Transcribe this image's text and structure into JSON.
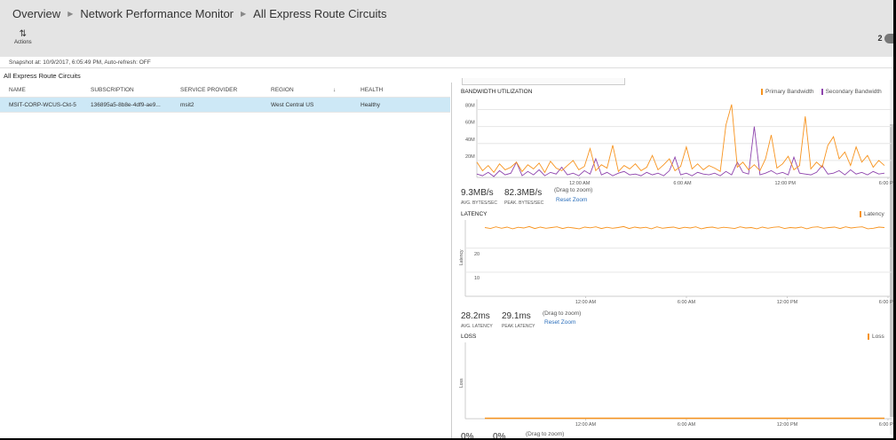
{
  "breadcrumb": [
    "Overview",
    "Network Performance Monitor",
    "All Express Route Circuits"
  ],
  "toolbar": {
    "actions_label": "Actions",
    "actions_icon": "sliders-icon",
    "notification_count": "2",
    "info_icon": "info-icon"
  },
  "snapshot": "Snapshot at: 10/9/2017, 6:05:49 PM, Auto-refresh: OFF",
  "list": {
    "title": "All Express Route Circuits",
    "columns": [
      "NAME",
      "SUBSCRIPTION",
      "SERVICE PROVIDER",
      "REGION",
      "↓",
      "HEALTH"
    ],
    "rows": [
      [
        "MSIT-CORP-WCUS-Ckt-5",
        "136895a5-8b8e-4df9-ae9...",
        "msit2",
        "West Central US",
        "",
        "Healthy"
      ]
    ]
  },
  "colors": {
    "primary": "#f7931e",
    "secondary": "#8e44ad",
    "link": "#2a6ebb",
    "selected_row": "#cde8f6"
  },
  "bandwidth": {
    "title": "BANDWIDTH UTILIZATION",
    "avg": "9.3MB/s",
    "avg_label": "AVG. BYTES/SEC",
    "peak": "82.3MB/s",
    "peak_label": "PEAK. BYTES/SEC",
    "drag": "(Drag to zoom)",
    "reset": "Reset Zoom"
  },
  "latency": {
    "title": "LATENCY",
    "avg": "28.2ms",
    "avg_label": "AVG. LATENCY",
    "peak": "29.1ms",
    "peak_label": "PEAK LATENCY",
    "drag": "(Drag to zoom)",
    "reset": "Reset Zoom"
  },
  "loss": {
    "title": "LOSS",
    "avg": "0%",
    "peak": "0%",
    "drag": "(Drag to zoom)"
  },
  "chart_data": [
    {
      "type": "line",
      "title": "BANDWIDTH UTILIZATION",
      "ylim": [
        0,
        90
      ],
      "yticks": [
        "20M",
        "40M",
        "60M",
        "80M"
      ],
      "ytick_values": [
        20,
        40,
        60,
        80
      ],
      "xticks": [
        "12:00 AM",
        "6:00 AM",
        "12:00 PM",
        "6:00 PM"
      ],
      "xrange": [
        "6:00 PM",
        "6:00 PM"
      ],
      "grid": true,
      "legend": "top-right",
      "series": [
        {
          "name": "Primary Bandwidth",
          "color": "#f7931e",
          "values": [
            18,
            8,
            14,
            6,
            16,
            9,
            12,
            18,
            7,
            15,
            10,
            17,
            6,
            19,
            11,
            8,
            14,
            20,
            9,
            13,
            34,
            8,
            15,
            11,
            38,
            7,
            14,
            10,
            16,
            8,
            12,
            26,
            9,
            15,
            22,
            8,
            13,
            36,
            10,
            16,
            9,
            14,
            11,
            7,
            62,
            86,
            12,
            18,
            9,
            15,
            8,
            22,
            50,
            11,
            16,
            25,
            9,
            14,
            72,
            10,
            18,
            12,
            38,
            48,
            22,
            30,
            14,
            36,
            18,
            26,
            12,
            20,
            14
          ]
        },
        {
          "name": "Secondary Bandwidth",
          "color": "#8e44ad",
          "values": [
            4,
            2,
            6,
            1,
            8,
            3,
            5,
            18,
            2,
            7,
            3,
            9,
            2,
            6,
            4,
            12,
            3,
            5,
            2,
            8,
            4,
            22,
            3,
            6,
            2,
            5,
            7,
            3,
            4,
            2,
            6,
            3,
            5,
            2,
            8,
            24,
            3,
            5,
            2,
            6,
            4,
            3,
            5,
            2,
            7,
            3,
            18,
            6,
            4,
            60,
            3,
            5,
            8,
            4,
            6,
            3,
            24,
            5,
            4,
            3,
            6,
            14,
            4,
            5,
            8,
            3,
            9,
            4,
            6,
            3,
            7,
            4,
            5
          ]
        }
      ]
    },
    {
      "type": "line",
      "title": "LATENCY",
      "ylabel": "Latency",
      "ylim": [
        0,
        31
      ],
      "yticks": [
        "10",
        "20"
      ],
      "ytick_values": [
        10,
        20
      ],
      "xticks": [
        "12:00 AM",
        "6:00 AM",
        "12:00 PM",
        "6:00 PM"
      ],
      "grid": true,
      "legend": "top-right",
      "series": [
        {
          "name": "Latency",
          "color": "#f7931e",
          "values": [
            28.6,
            28.2,
            28.9,
            28.3,
            28.8,
            28.1,
            28.7,
            28.4,
            29.0,
            28.2,
            28.8,
            28.3,
            28.6,
            28.9,
            28.2,
            28.7,
            28.4,
            28.1,
            28.8,
            28.5,
            28.9,
            28.2,
            28.7,
            28.3,
            28.6,
            29.0,
            28.2,
            28.8,
            28.4,
            28.7,
            28.1,
            28.9,
            28.3,
            28.6,
            28.8,
            28.2,
            28.7,
            28.4,
            28.9,
            28.1,
            28.6,
            28.8,
            28.3,
            28.7,
            28.5,
            28.2,
            28.9,
            28.4,
            28.6,
            28.1,
            28.8,
            28.3,
            28.7,
            28.9,
            28.2,
            28.6,
            28.4,
            28.8,
            28.1,
            28.7,
            28.9,
            28.3,
            28.6,
            28.8,
            28.2,
            28.9,
            28.4,
            28.7,
            28.9,
            28.1,
            28.3,
            28.8,
            28.6
          ]
        }
      ]
    },
    {
      "type": "line",
      "title": "LOSS",
      "ylabel": "Loss",
      "xticks": [
        "12:00 AM",
        "6:00 AM",
        "12:00 PM",
        "6:00 PM"
      ],
      "legend": "top-right",
      "series": [
        {
          "name": "Loss",
          "color": "#f7931e",
          "values": [
            0,
            0,
            0,
            0,
            0,
            0,
            0,
            0,
            0,
            0,
            0,
            0,
            0,
            0,
            0,
            0,
            0,
            0,
            0,
            0,
            0,
            0,
            0,
            0,
            0
          ]
        }
      ]
    }
  ]
}
